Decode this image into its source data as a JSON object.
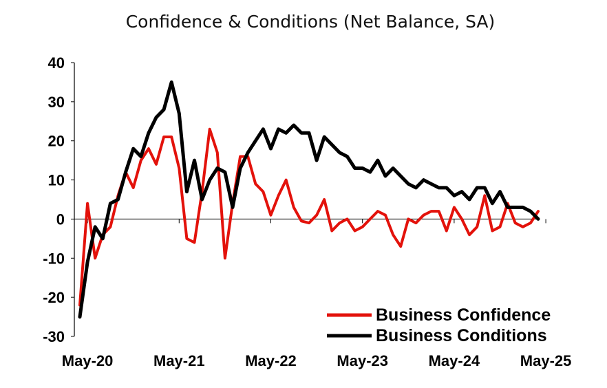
{
  "chart_data": {
    "type": "line",
    "title": "Confidence & Conditions (Net Balance, SA)",
    "xlabel": "",
    "ylabel": "",
    "ylim": [
      -30,
      40
    ],
    "yticks": [
      40,
      30,
      20,
      10,
      0,
      -10,
      -20,
      -30
    ],
    "x_start": "Apr-20",
    "x_ticks": [
      {
        "label": "May-20",
        "index": 1
      },
      {
        "label": "May-21",
        "index": 13
      },
      {
        "label": "May-22",
        "index": 25
      },
      {
        "label": "May-23",
        "index": 37
      },
      {
        "label": "May-24",
        "index": 49
      },
      {
        "label": "May-25",
        "index": 61
      }
    ],
    "legend_position": "bottom-right",
    "series": [
      {
        "name": "Business Confidence",
        "color": "#e3120b",
        "values": [
          -22,
          4,
          -10,
          -4,
          -2,
          6,
          12,
          8,
          15,
          18,
          14,
          21,
          21,
          13,
          -5,
          -6,
          7,
          23,
          17,
          -10,
          4,
          16,
          16,
          9,
          7,
          1,
          6,
          10,
          3,
          -0.5,
          -1,
          1,
          5,
          -3,
          -1,
          0,
          -3,
          -2,
          0,
          2,
          1,
          -4,
          -7,
          0,
          -1,
          1,
          2,
          2,
          -3,
          3,
          0,
          -4,
          -2,
          6,
          -3,
          -2,
          4,
          -1,
          -2,
          -1,
          2
        ]
      },
      {
        "name": "Business Conditions",
        "color": "#000000",
        "values": [
          -25,
          -11,
          -2,
          -5,
          4,
          5,
          12,
          18,
          16,
          22,
          26,
          28,
          35,
          27,
          7,
          15,
          5,
          10,
          13,
          12,
          3,
          13,
          17,
          20,
          23,
          18,
          23,
          22,
          24,
          22,
          22,
          15,
          21,
          19,
          17,
          16,
          13,
          13,
          12,
          15,
          11,
          13,
          11,
          9,
          8,
          10,
          9,
          8,
          8,
          6,
          7,
          5,
          8,
          8,
          4,
          7,
          3,
          3,
          3,
          2,
          0
        ]
      }
    ]
  }
}
